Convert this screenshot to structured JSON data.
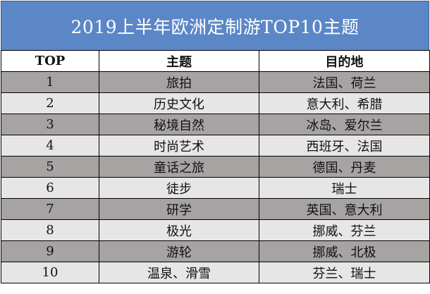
{
  "title": "2019上半年欧洲定制游TOP10主题",
  "headers": {
    "rank": "TOP",
    "theme": "主题",
    "destination": "目的地"
  },
  "rows": [
    {
      "rank": "1",
      "theme": "旅拍",
      "destination": "法国、荷兰"
    },
    {
      "rank": "2",
      "theme": "历史文化",
      "destination": "意大利、希腊"
    },
    {
      "rank": "3",
      "theme": "秘境自然",
      "destination": "冰岛、爱尔兰"
    },
    {
      "rank": "4",
      "theme": "时尚艺术",
      "destination": "西班牙、法国"
    },
    {
      "rank": "5",
      "theme": "童话之旅",
      "destination": "德国、丹麦"
    },
    {
      "rank": "6",
      "theme": "徒步",
      "destination": "瑞士"
    },
    {
      "rank": "7",
      "theme": "研学",
      "destination": "英国、意大利"
    },
    {
      "rank": "8",
      "theme": "极光",
      "destination": "挪威、芬兰"
    },
    {
      "rank": "9",
      "theme": "游轮",
      "destination": "挪威、北极"
    },
    {
      "rank": "10",
      "theme": "温泉、滑雪",
      "destination": "芬兰、瑞士"
    }
  ],
  "colors": {
    "title_background": "#5b87c7",
    "row_dark": "#a8a3a3",
    "row_light": "#e6e6e6"
  }
}
